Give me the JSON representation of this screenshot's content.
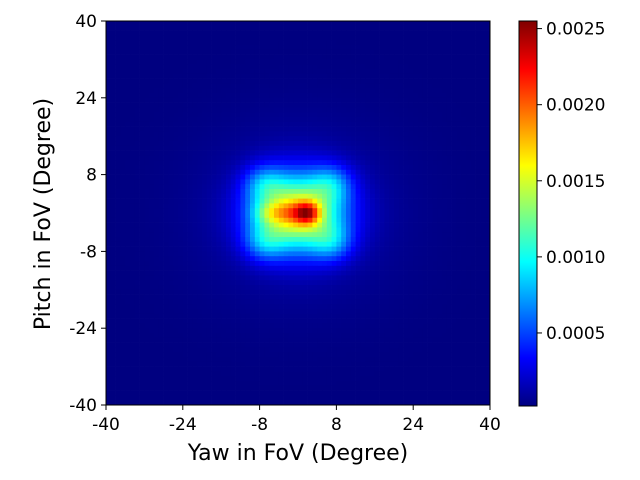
{
  "chart_data": {
    "type": "heatmap",
    "title": "",
    "xlabel": "Yaw in FoV (Degree)",
    "ylabel": "Pitch in FoV (Degree)",
    "xlim": [
      -40,
      40
    ],
    "ylim": [
      -40,
      40
    ],
    "xticks": [
      "-40",
      "-24",
      "-8",
      "8",
      "24",
      "40"
    ],
    "yticks": [
      "-40",
      "-24",
      "-8",
      "8",
      "24",
      "40"
    ],
    "grid": false,
    "colormap": "jet",
    "colorbar": {
      "min": 2e-05,
      "max": 0.00255,
      "ticks": [
        "0.0005",
        "0.0010",
        "0.0015",
        "0.0020",
        "0.0025"
      ]
    },
    "grid_resolution": [
      80,
      80
    ],
    "density_model": {
      "background": 2e-05,
      "components": [
        {
          "yaw": 0,
          "pitch": 0,
          "amplitude": 0.00152,
          "sigma_yaw": 6.5,
          "sigma_pitch": 5.5
        },
        {
          "yaw": -7,
          "pitch": 6,
          "amplitude": 0.00042,
          "sigma_yaw": 3.0,
          "sigma_pitch": 2.8
        },
        {
          "yaw": 7,
          "pitch": 6,
          "amplitude": 0.00042,
          "sigma_yaw": 3.0,
          "sigma_pitch": 2.8
        },
        {
          "yaw": -7,
          "pitch": -6,
          "amplitude": 0.00042,
          "sigma_yaw": 3.0,
          "sigma_pitch": 2.8
        },
        {
          "yaw": 7,
          "pitch": -6,
          "amplitude": 0.00042,
          "sigma_yaw": 3.0,
          "sigma_pitch": 2.8
        },
        {
          "yaw": -6,
          "pitch": 0,
          "amplitude": 0.00032,
          "sigma_yaw": 2.5,
          "sigma_pitch": 1.6
        },
        {
          "yaw": -1.5,
          "pitch": 0,
          "amplitude": 0.0003,
          "sigma_yaw": 2.5,
          "sigma_pitch": 1.6
        },
        {
          "yaw": 2,
          "pitch": 0,
          "amplitude": 0.00088,
          "sigma_yaw": 1.8,
          "sigma_pitch": 1.6
        },
        {
          "yaw": 0,
          "pitch": 0,
          "amplitude": 0.00012,
          "sigma_yaw": 15,
          "sigma_pitch": 13
        }
      ]
    }
  }
}
